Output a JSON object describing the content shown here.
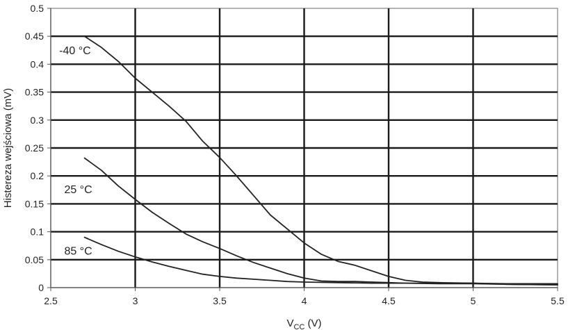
{
  "chart_data": {
    "type": "line",
    "title": "",
    "xlabel_main": "V",
    "xlabel_sub": "CC",
    "xlabel_tail": " (V)",
    "ylabel": "Histereza wejściowa (mV)",
    "xlim": [
      2.5,
      5.5
    ],
    "ylim": [
      0,
      0.5
    ],
    "xticks": [
      2.5,
      3,
      3.5,
      4,
      4.5,
      5,
      5.5
    ],
    "xtick_labels": [
      "2.5",
      "3",
      "3.5",
      "4",
      "4.5",
      "5",
      "5.5"
    ],
    "yticks": [
      0,
      0.05,
      0.1,
      0.15,
      0.2,
      0.25,
      0.3,
      0.35,
      0.4,
      0.45,
      0.5
    ],
    "ytick_labels": [
      "0",
      "0.05",
      "0.1",
      "0.15",
      "0.2",
      "0.25",
      "0.3",
      "0.35",
      "0.4",
      "0.45",
      "0.5"
    ],
    "grid": true,
    "line_color": "#222222",
    "grid_color": "#1a1a1a",
    "series": [
      {
        "name": "-40 °C",
        "x": [
          2.7,
          2.8,
          2.9,
          3.0,
          3.1,
          3.2,
          3.3,
          3.4,
          3.5,
          3.6,
          3.7,
          3.8,
          3.9,
          4.0,
          4.1,
          4.2,
          4.3,
          4.4,
          4.5,
          4.6,
          4.7,
          4.8,
          5.0,
          5.2,
          5.5
        ],
        "y": [
          0.45,
          0.43,
          0.405,
          0.375,
          0.35,
          0.325,
          0.298,
          0.262,
          0.233,
          0.2,
          0.165,
          0.13,
          0.105,
          0.08,
          0.06,
          0.047,
          0.04,
          0.03,
          0.02,
          0.013,
          0.01,
          0.009,
          0.008,
          0.007,
          0.007
        ]
      },
      {
        "name": "25 °C",
        "x": [
          2.7,
          2.8,
          2.9,
          3.0,
          3.1,
          3.2,
          3.3,
          3.4,
          3.5,
          3.6,
          3.7,
          3.8,
          3.9,
          4.0,
          4.1,
          4.2,
          4.3,
          4.4,
          4.5,
          4.6,
          4.8,
          5.0,
          5.2,
          5.5
        ],
        "y": [
          0.232,
          0.21,
          0.182,
          0.158,
          0.135,
          0.115,
          0.096,
          0.082,
          0.07,
          0.057,
          0.045,
          0.035,
          0.025,
          0.017,
          0.012,
          0.011,
          0.011,
          0.01,
          0.009,
          0.008,
          0.008,
          0.008,
          0.006,
          0.005
        ]
      },
      {
        "name": "85 °C",
        "x": [
          2.7,
          2.8,
          2.9,
          3.0,
          3.1,
          3.2,
          3.3,
          3.4,
          3.5,
          3.6,
          3.7,
          3.8,
          3.9,
          4.0,
          4.2,
          4.4,
          4.6,
          4.8,
          5.0,
          5.2,
          5.5
        ],
        "y": [
          0.09,
          0.077,
          0.065,
          0.055,
          0.046,
          0.038,
          0.031,
          0.024,
          0.02,
          0.017,
          0.015,
          0.013,
          0.011,
          0.01,
          0.009,
          0.008,
          0.008,
          0.007,
          0.007,
          0.006,
          0.005
        ]
      }
    ],
    "annotations": [
      {
        "text": "-40 °C",
        "x": 2.55,
        "y": 0.418
      },
      {
        "text": "25 °C",
        "x": 2.58,
        "y": 0.169
      },
      {
        "text": "85 °C",
        "x": 2.58,
        "y": 0.059
      }
    ]
  }
}
